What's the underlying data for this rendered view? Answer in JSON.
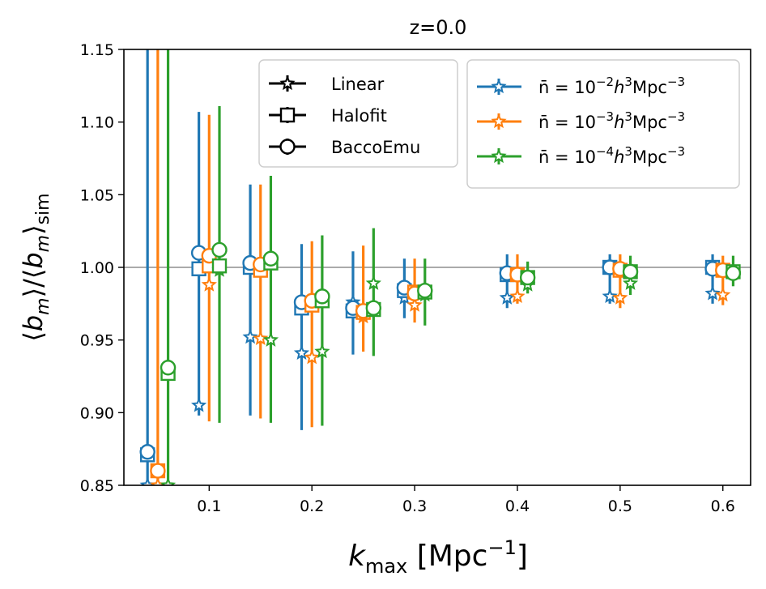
{
  "chart_data": {
    "type": "scatter",
    "title": "z=0.0",
    "xlabel": "k_max [Mpc^-1]",
    "xlabel_main": "k",
    "xlabel_sub": "max",
    "xlabel_unit": " [Mpc",
    "xlabel_sup": "−1",
    "xlabel_close": "]",
    "ylabel": "⟨b_m⟩/⟨b_m⟩_sim",
    "xlim": [
      0.017,
      0.627
    ],
    "ylim": [
      0.85,
      1.15
    ],
    "xticks": [
      0.1,
      0.2,
      0.3,
      0.4,
      0.5,
      0.6
    ],
    "xtick_labels": [
      "0.1",
      "0.2",
      "0.3",
      "0.4",
      "0.5",
      "0.6"
    ],
    "yticks": [
      0.85,
      0.9,
      0.95,
      1.0,
      1.05,
      1.1,
      1.15
    ],
    "ytick_labels": [
      "0.85",
      "0.90",
      "0.95",
      "1.00",
      "1.05",
      "1.10",
      "1.15"
    ],
    "reference_line": 1.0,
    "x_offsets": [
      -0.01,
      0.0,
      0.01
    ],
    "kmax": [
      0.05,
      0.1,
      0.15,
      0.2,
      0.25,
      0.3,
      0.4,
      0.5,
      0.6
    ],
    "models": [
      {
        "name": "Linear",
        "marker": "star"
      },
      {
        "name": "Halofit",
        "marker": "square"
      },
      {
        "name": "BaccoEmu",
        "marker": "circle"
      }
    ],
    "series": [
      {
        "name": "n̄ = 10^-2 h^3 Mpc^-3",
        "color": "#1f77b4",
        "error_low": [
          0.85,
          0.898,
          0.898,
          0.888,
          0.94,
          0.965,
          0.972,
          0.975,
          0.975
        ],
        "error_high": [
          1.15,
          1.107,
          1.057,
          1.016,
          1.011,
          1.006,
          1.009,
          1.009,
          1.009
        ],
        "linear": [
          0.85,
          0.905,
          0.952,
          0.941,
          0.976,
          0.979,
          0.979,
          0.98,
          0.982
        ],
        "halofit": [
          0.871,
          0.999,
          1.0,
          0.972,
          0.97,
          0.984,
          0.995,
          1.0,
          1.0
        ],
        "bacco": [
          0.873,
          1.01,
          1.003,
          0.976,
          0.972,
          0.986,
          0.996,
          1.0,
          0.999
        ]
      },
      {
        "name": "n̄ = 10^-3 h^3 Mpc^-3",
        "color": "#ff7f0e",
        "error_low": [
          0.85,
          0.894,
          0.896,
          0.89,
          0.942,
          0.962,
          0.975,
          0.972,
          0.974
        ],
        "error_high": [
          1.15,
          1.105,
          1.057,
          1.018,
          1.015,
          1.006,
          1.009,
          1.009,
          1.008
        ],
        "linear": [
          0.85,
          0.988,
          0.951,
          0.938,
          0.966,
          0.974,
          0.98,
          0.979,
          0.981
        ],
        "halofit": [
          0.86,
          1.001,
          0.998,
          0.974,
          0.969,
          0.983,
          0.995,
          0.998,
          0.998
        ],
        "bacco": [
          0.86,
          1.008,
          1.002,
          0.977,
          0.97,
          0.982,
          0.995,
          0.999,
          0.998
        ]
      },
      {
        "name": "n̄ = 10^-4 h^3 Mpc^-3",
        "color": "#2ca02c",
        "error_low": [
          0.85,
          0.893,
          0.893,
          0.891,
          0.939,
          0.96,
          0.982,
          0.981,
          0.987
        ],
        "error_high": [
          1.15,
          1.111,
          1.063,
          1.022,
          1.027,
          1.006,
          1.004,
          1.008,
          1.008
        ],
        "linear": [
          0.85,
          0.998,
          0.95,
          0.942,
          0.989,
          0.981,
          0.988,
          0.989,
          0.996
        ],
        "halofit": [
          0.927,
          1.001,
          1.003,
          0.977,
          0.971,
          0.983,
          0.993,
          0.997,
          0.997
        ],
        "bacco": [
          0.931,
          1.012,
          1.006,
          0.98,
          0.972,
          0.984,
          0.993,
          0.997,
          0.996
        ]
      }
    ],
    "legend_left": [
      "Linear",
      "Halofit",
      "BaccoEmu"
    ],
    "legend_right_prefix": "n̄ = 10",
    "legend_right_exps": [
      "−2",
      "−3",
      "−4"
    ],
    "legend_right_h": "h",
    "legend_right_mpc": "Mpc",
    "legend_right_sup3": "3",
    "legend_right_supm3": "−3"
  }
}
